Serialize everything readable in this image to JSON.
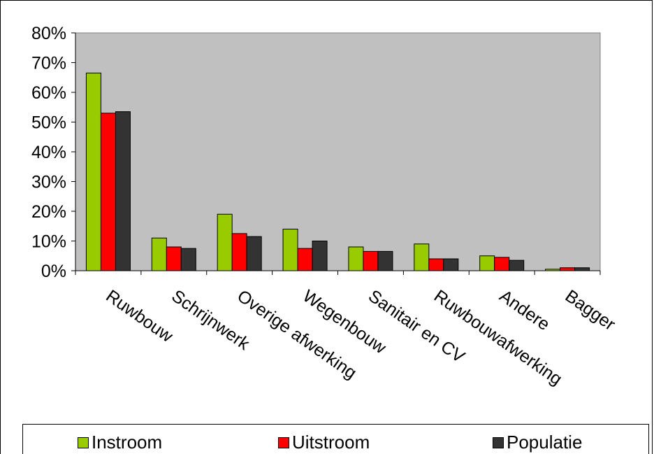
{
  "chart_data": {
    "type": "bar",
    "categories": [
      "Ruwbouw",
      "Schrijnwerk",
      "Overige afwerking",
      "Wegenbouw",
      "Sanitair en CV",
      "Ruwbouwafwerking",
      "Andere",
      "Bagger"
    ],
    "series": [
      {
        "name": "Instroom",
        "color": "#99cc00",
        "values": [
          0.665,
          0.11,
          0.19,
          0.14,
          0.08,
          0.09,
          0.05,
          0.005
        ]
      },
      {
        "name": "Uitstroom",
        "color": "#ff0000",
        "values": [
          0.53,
          0.08,
          0.125,
          0.075,
          0.065,
          0.04,
          0.045,
          0.01
        ]
      },
      {
        "name": "Populatie",
        "color": "#333333",
        "values": [
          0.535,
          0.075,
          0.115,
          0.1,
          0.065,
          0.04,
          0.035,
          0.01
        ]
      }
    ],
    "ylim": [
      0,
      0.8
    ],
    "yticks": [
      "0%",
      "10%",
      "20%",
      "30%",
      "40%",
      "50%",
      "60%",
      "70%",
      "80%"
    ],
    "plot_background": "#c0c0c0",
    "grid": false,
    "legend_position": "bottom",
    "title": "",
    "xlabel": "",
    "ylabel": ""
  }
}
